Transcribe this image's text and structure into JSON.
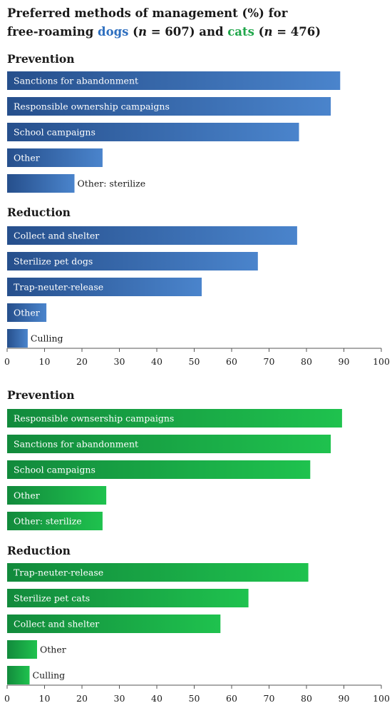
{
  "title": {
    "line1": "Preferred methods of management (%) for",
    "line2_prefix": "free-roaming ",
    "dogs_word": "dogs",
    "open_paren_1": " (",
    "n_symbol_1": "n",
    "n_dogs_text": " = 607)",
    "and_word": " and ",
    "cats_word": "cats",
    "open_paren_2": " (",
    "n_symbol_2": "n",
    "n_cats_text": " = 476)"
  },
  "colors": {
    "dogs_dark": "#264f8c",
    "dogs_light": "#4a84cc",
    "cats_dark": "#128a3c",
    "cats_light": "#1fc24e",
    "dogs_title": "#2e6fbf",
    "cats_title": "#1fa64a"
  },
  "chart_data": [
    {
      "type": "bar",
      "orientation": "horizontal",
      "species": "dogs",
      "xlim": [
        0,
        100
      ],
      "xticks": [
        0,
        10,
        20,
        30,
        40,
        50,
        60,
        70,
        80,
        90,
        100
      ],
      "groups": [
        {
          "label": "Prevention",
          "bars": [
            {
              "label": "Sanctions for abandonment",
              "value": 89
            },
            {
              "label": "Responsible ownership campaigns",
              "value": 86.5
            },
            {
              "label": "School campaigns",
              "value": 78
            },
            {
              "label": "Other",
              "value": 25.5
            },
            {
              "label": "Other: sterilize",
              "value": 18
            }
          ]
        },
        {
          "label": "Reduction",
          "bars": [
            {
              "label": "Collect and shelter",
              "value": 77.5
            },
            {
              "label": "Sterilize pet dogs",
              "value": 67
            },
            {
              "label": "Trap-neuter-release",
              "value": 52
            },
            {
              "label": "Other",
              "value": 10.5
            },
            {
              "label": "Culling",
              "value": 5.5
            }
          ]
        }
      ]
    },
    {
      "type": "bar",
      "orientation": "horizontal",
      "species": "cats",
      "xlim": [
        0,
        100
      ],
      "xticks": [
        0,
        10,
        20,
        30,
        40,
        50,
        60,
        70,
        80,
        90,
        100
      ],
      "groups": [
        {
          "label": "Prevention",
          "bars": [
            {
              "label": "Responsible ownsership campaigns",
              "value": 89.5
            },
            {
              "label": "Sanctions for abandonment",
              "value": 86.5
            },
            {
              "label": "School campaigns",
              "value": 81
            },
            {
              "label": "Other",
              "value": 26.5
            },
            {
              "label": "Other: sterilize",
              "value": 25.5
            }
          ]
        },
        {
          "label": "Reduction",
          "bars": [
            {
              "label": "Trap-neuter-release",
              "value": 80.5
            },
            {
              "label": "Sterilize pet cats",
              "value": 64.5
            },
            {
              "label": "Collect and shelter",
              "value": 57
            },
            {
              "label": "Other",
              "value": 8
            },
            {
              "label": "Culling",
              "value": 6
            }
          ]
        }
      ]
    }
  ]
}
